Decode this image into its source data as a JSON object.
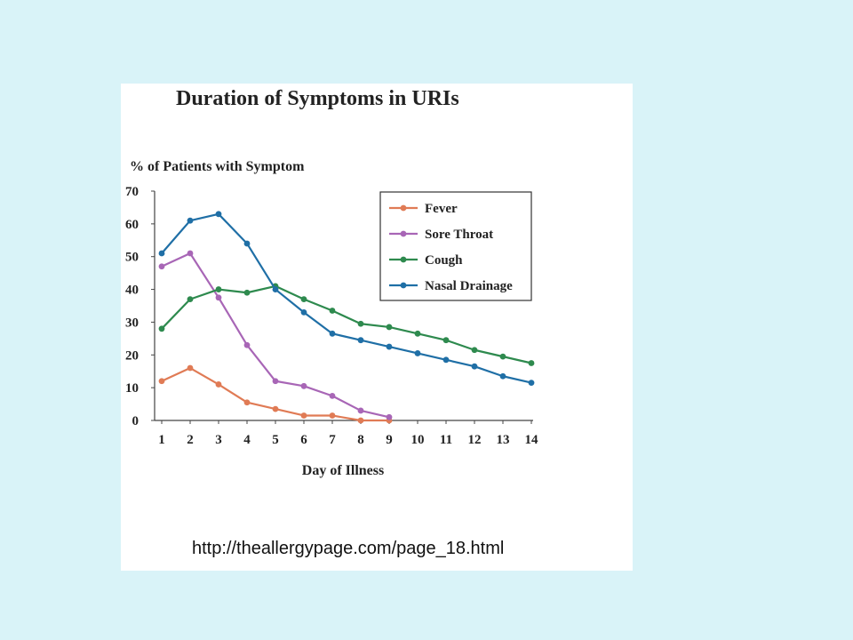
{
  "slide": {
    "source_url": "http://theallergypage.com/page_18.html"
  },
  "chart_data": {
    "type": "line",
    "title": "Duration of Symptoms in URIs",
    "ylabel": "% of Patients with Symptom",
    "xlabel": "Day of Illness",
    "x": [
      1,
      2,
      3,
      4,
      5,
      6,
      7,
      8,
      9,
      10,
      11,
      12,
      13,
      14
    ],
    "xticks": [
      "1",
      "2",
      "3",
      "4",
      "5",
      "6",
      "7",
      "8",
      "9",
      "10",
      "11",
      "12",
      "13",
      "14"
    ],
    "yticks": [
      "0",
      "10",
      "20",
      "30",
      "40",
      "50",
      "60",
      "70"
    ],
    "ylim": [
      0,
      70
    ],
    "xlim": [
      1,
      14
    ],
    "legend_position": "top-right",
    "series": [
      {
        "name": "Fever",
        "color": "#e07b55",
        "values": [
          12,
          16,
          11,
          5.5,
          3.5,
          1.5,
          1.5,
          0,
          0,
          null,
          null,
          null,
          null,
          null
        ]
      },
      {
        "name": "Sore Throat",
        "color": "#a866b6",
        "values": [
          47,
          51,
          37.5,
          23,
          12,
          10.5,
          7.5,
          3,
          1,
          null,
          null,
          null,
          null,
          null
        ]
      },
      {
        "name": "Cough",
        "color": "#2e8a4e",
        "values": [
          28,
          37,
          40,
          39,
          41,
          37,
          33.5,
          29.5,
          28.5,
          26.5,
          24.5,
          21.5,
          19.5,
          17.5
        ]
      },
      {
        "name": "Nasal Drainage",
        "color": "#1f6fa6",
        "values": [
          51,
          61,
          63,
          54,
          40,
          33,
          26.5,
          24.5,
          22.5,
          20.5,
          18.5,
          16.5,
          13.5,
          11.5
        ]
      }
    ]
  }
}
